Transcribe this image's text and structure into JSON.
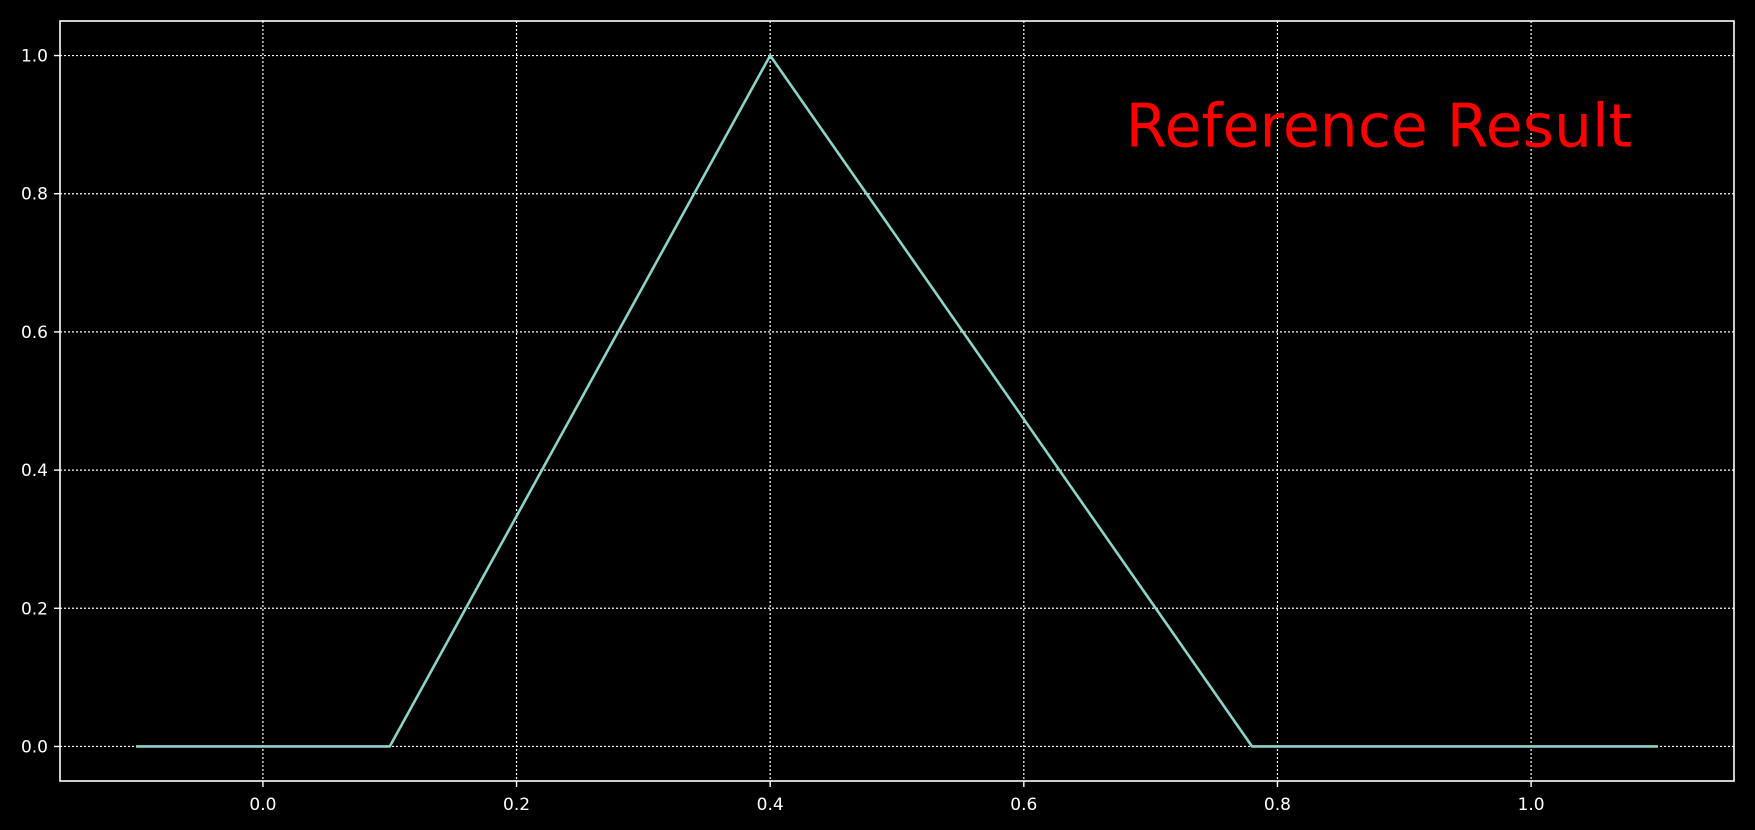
{
  "chart_data": {
    "type": "line",
    "title": "",
    "xlabel": "",
    "ylabel": "",
    "xlim": [
      -0.16,
      1.16
    ],
    "ylim": [
      -0.05,
      1.05
    ],
    "grid": true,
    "grid_style": "dotted",
    "x_ticks": [
      0.0,
      0.2,
      0.4,
      0.6,
      0.8,
      1.0
    ],
    "x_tick_labels": [
      "0.0",
      "0.2",
      "0.4",
      "0.6",
      "0.8",
      "1.0"
    ],
    "y_ticks": [
      0.0,
      0.2,
      0.4,
      0.6,
      0.8,
      1.0
    ],
    "y_tick_labels": [
      "0.0",
      "0.2",
      "0.4",
      "0.6",
      "0.8",
      "1.0"
    ],
    "series": [
      {
        "x": [
          -0.1,
          0.1,
          0.4,
          0.78,
          1.1
        ],
        "y": [
          0.0,
          0.0,
          1.0,
          0.0,
          0.0
        ],
        "color": "#8dd3c7"
      }
    ],
    "annotations": [
      {
        "text": "Reference Result",
        "x": 0.88,
        "y": 0.9,
        "color": "#ff0000"
      }
    ]
  },
  "colors": {
    "background": "#000000",
    "axes": "#ffffff",
    "grid": "#ffffff",
    "text": "#ffffff"
  }
}
